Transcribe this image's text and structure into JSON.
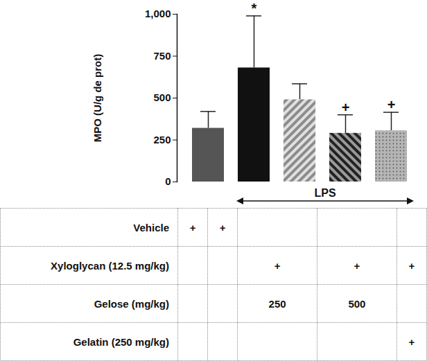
{
  "chart_data": {
    "type": "bar",
    "y_label": "MPO (U/g de prot)",
    "categories": [
      null,
      null,
      null,
      null,
      null
    ],
    "values": [
      320,
      680,
      490,
      290,
      305
    ],
    "errors": [
      100,
      310,
      95,
      110,
      110
    ],
    "colors": [
      "#555555",
      "#111111",
      "#8c8c8c",
      "#222222",
      "#b5b5b5"
    ],
    "ylim": [
      0,
      1000
    ],
    "yticks": [
      0,
      250,
      500,
      750,
      1000
    ],
    "tick_labels": "y",
    "annotations": [
      null,
      "*",
      null,
      "+",
      "+"
    ],
    "group": {
      "label": "LPS",
      "from": 1,
      "to": 4
    }
  },
  "table": {
    "rows": [
      [
        "Vehicle",
        "+",
        "+",
        null,
        null,
        null
      ],
      [
        "Xyloglycan (12.5 mg/kg)",
        null,
        null,
        "+",
        "+",
        "+"
      ],
      [
        "Gelose (mg/kg)",
        null,
        null,
        250,
        500,
        null
      ],
      [
        "Gelatin (250 mg/kg)",
        null,
        null,
        null,
        null,
        "+"
      ]
    ]
  }
}
